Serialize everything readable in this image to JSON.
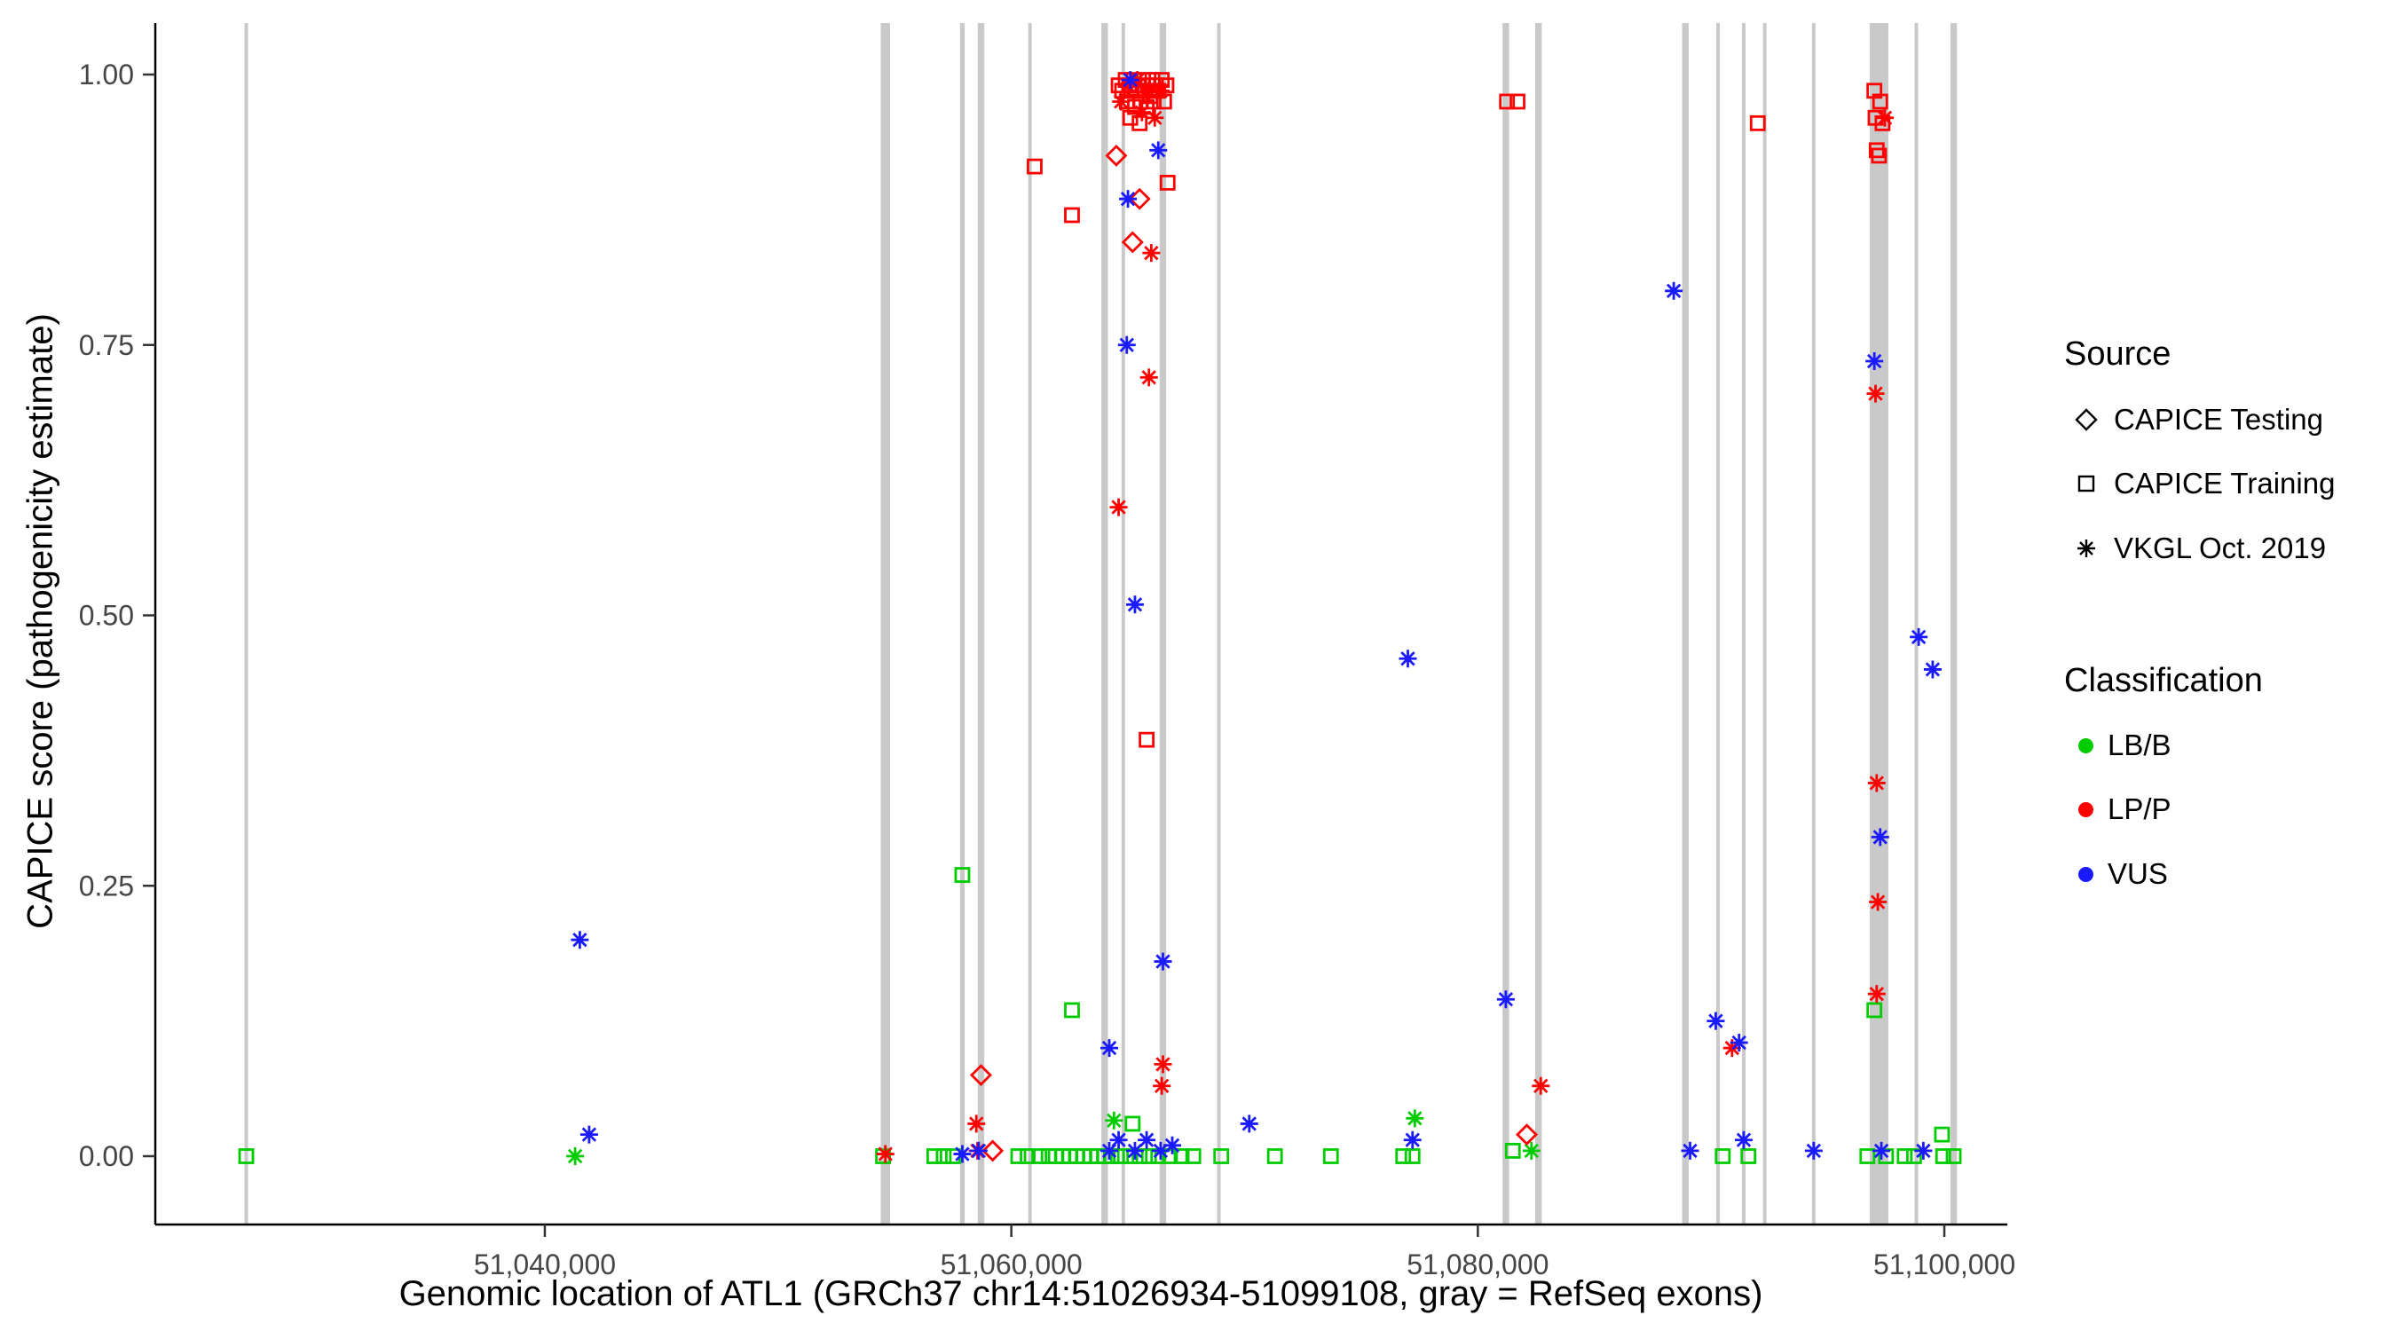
{
  "legend": {
    "source": {
      "title": "Source",
      "items": [
        {
          "symbol": "diamond-icon",
          "label": "CAPICE Testing"
        },
        {
          "symbol": "square-icon",
          "label": "CAPICE Training"
        },
        {
          "symbol": "asterisk-icon",
          "label": "VKGL Oct. 2019"
        }
      ]
    },
    "classification": {
      "title": "Classification",
      "items": [
        {
          "label": "LB/B",
          "color_code": "G"
        },
        {
          "label": "LP/P",
          "color_code": "R"
        },
        {
          "label": "VUS",
          "color_code": "V"
        }
      ]
    }
  },
  "chart_data": {
    "type": "scatter",
    "xlabel": "Genomic location of ATL1 (GRCh37 chr14:51026934-51099108, gray = RefSeq exons)",
    "ylabel": "CAPICE score (pathogenicity estimate)",
    "xlim": [
      51023300,
      51102700
    ],
    "ylim": [
      -0.063,
      1.048
    ],
    "grid": false,
    "legend_position": "right",
    "x_ticks": [
      {
        "value": 51040000,
        "label": "51,040,000"
      },
      {
        "value": 51060000,
        "label": "51,060,000"
      },
      {
        "value": 51080000,
        "label": "51,080,000"
      },
      {
        "value": 51100000,
        "label": "51,100,000"
      }
    ],
    "y_ticks": [
      {
        "value": 0.0,
        "label": "0.00"
      },
      {
        "value": 0.25,
        "label": "0.25"
      },
      {
        "value": 0.5,
        "label": "0.50"
      },
      {
        "value": 0.75,
        "label": "0.75"
      },
      {
        "value": 1.0,
        "label": "1.00"
      }
    ],
    "exon_color": "#C9C9C9",
    "exon_format": [
      "genomic_position_center",
      "width_bp"
    ],
    "exons": [
      [
        51027200,
        150
      ],
      [
        51054600,
        400
      ],
      [
        51057900,
        200
      ],
      [
        51058700,
        280
      ],
      [
        51060800,
        150
      ],
      [
        51064000,
        280
      ],
      [
        51064800,
        150
      ],
      [
        51066500,
        280
      ],
      [
        51068900,
        150
      ],
      [
        51081200,
        280
      ],
      [
        51082600,
        280
      ],
      [
        51088900,
        280
      ],
      [
        51090300,
        150
      ],
      [
        51091400,
        150
      ],
      [
        51092300,
        150
      ],
      [
        51094400,
        150
      ],
      [
        51097200,
        800
      ],
      [
        51098800,
        150
      ],
      [
        51100400,
        280
      ]
    ],
    "source_codes": {
      "D": "CAPICE Testing",
      "S": "CAPICE Training",
      "A": "VKGL Oct. 2019"
    },
    "source_shapes": {
      "D": "open-diamond",
      "S": "open-square",
      "A": "asterisk"
    },
    "class_codes": {
      "G": "LB/B",
      "R": "LP/P",
      "V": "VUS"
    },
    "class_colors": {
      "G": "#00CC00",
      "R": "#FF0000",
      "V": "#1A1AFF"
    },
    "point_format": [
      "genomic_position",
      "capice_score",
      "source_code",
      "class_code"
    ],
    "points": [
      [
        51027200,
        0,
        "S",
        "G"
      ],
      [
        51054500,
        0,
        "S",
        "G"
      ],
      [
        51056700,
        0,
        "S",
        "G"
      ],
      [
        51057100,
        0,
        "S",
        "G"
      ],
      [
        51057500,
        0,
        "S",
        "G"
      ],
      [
        51057900,
        0.26,
        "S",
        "G"
      ],
      [
        51060300,
        0,
        "S",
        "G"
      ],
      [
        51060700,
        0,
        "S",
        "G"
      ],
      [
        51061200,
        0,
        "S",
        "G"
      ],
      [
        51061600,
        0,
        "S",
        "G"
      ],
      [
        51061900,
        0,
        "S",
        "G"
      ],
      [
        51062200,
        0,
        "S",
        "G"
      ],
      [
        51062500,
        0,
        "S",
        "G"
      ],
      [
        51062600,
        0.135,
        "S",
        "G"
      ],
      [
        51062800,
        0,
        "S",
        "G"
      ],
      [
        51063100,
        0,
        "S",
        "G"
      ],
      [
        51063400,
        0,
        "S",
        "G"
      ],
      [
        51063700,
        0,
        "S",
        "G"
      ],
      [
        51064000,
        0,
        "S",
        "G"
      ],
      [
        51064300,
        0,
        "S",
        "G"
      ],
      [
        51064700,
        0,
        "S",
        "G"
      ],
      [
        51065100,
        0,
        "S",
        "G"
      ],
      [
        51065200,
        0.03,
        "S",
        "G"
      ],
      [
        51065500,
        0,
        "S",
        "G"
      ],
      [
        51065900,
        0,
        "S",
        "G"
      ],
      [
        51066300,
        0,
        "S",
        "G"
      ],
      [
        51066800,
        0,
        "S",
        "G"
      ],
      [
        51067300,
        0,
        "S",
        "G"
      ],
      [
        51067800,
        0,
        "S",
        "G"
      ],
      [
        51069000,
        0,
        "S",
        "G"
      ],
      [
        51071300,
        0,
        "S",
        "G"
      ],
      [
        51073700,
        0,
        "S",
        "G"
      ],
      [
        51076800,
        0,
        "S",
        "G"
      ],
      [
        51077200,
        0,
        "S",
        "G"
      ],
      [
        51081500,
        0.005,
        "S",
        "G"
      ],
      [
        51090500,
        0,
        "S",
        "G"
      ],
      [
        51091600,
        0,
        "S",
        "G"
      ],
      [
        51096700,
        0,
        "S",
        "G"
      ],
      [
        51097000,
        0.135,
        "S",
        "G"
      ],
      [
        51097500,
        0,
        "S",
        "G"
      ],
      [
        51098300,
        0,
        "S",
        "G"
      ],
      [
        51098700,
        0,
        "S",
        "G"
      ],
      [
        51099900,
        0.02,
        "S",
        "G"
      ],
      [
        51099950,
        0,
        "S",
        "G"
      ],
      [
        51100400,
        0,
        "S",
        "G"
      ],
      [
        51041300,
        0,
        "A",
        "G"
      ],
      [
        51064400,
        0.033,
        "A",
        "G"
      ],
      [
        51077300,
        0.035,
        "A",
        "G"
      ],
      [
        51082300,
        0.005,
        "A",
        "G"
      ],
      [
        51064600,
        0.99,
        "S",
        "R"
      ],
      [
        51064750,
        0.985,
        "S",
        "R"
      ],
      [
        51064900,
        0.995,
        "S",
        "R"
      ],
      [
        51064950,
        0.975,
        "S",
        "R"
      ],
      [
        51065050,
        0.99,
        "S",
        "R"
      ],
      [
        51065100,
        0.96,
        "S",
        "R"
      ],
      [
        51065150,
        0.985,
        "S",
        "R"
      ],
      [
        51065250,
        0.995,
        "S",
        "R"
      ],
      [
        51065300,
        0.97,
        "S",
        "R"
      ],
      [
        51065350,
        0.985,
        "S",
        "R"
      ],
      [
        51065450,
        0.99,
        "S",
        "R"
      ],
      [
        51065500,
        0.955,
        "S",
        "R"
      ],
      [
        51065550,
        0.975,
        "S",
        "R"
      ],
      [
        51065650,
        0.995,
        "S",
        "R"
      ],
      [
        51065700,
        0.985,
        "S",
        "R"
      ],
      [
        51065800,
        0.97,
        "S",
        "R"
      ],
      [
        51065850,
        0.99,
        "S",
        "R"
      ],
      [
        51065950,
        0.98,
        "S",
        "R"
      ],
      [
        51066050,
        0.995,
        "S",
        "R"
      ],
      [
        51066100,
        0.975,
        "S",
        "R"
      ],
      [
        51066200,
        0.99,
        "S",
        "R"
      ],
      [
        51066300,
        0.985,
        "S",
        "R"
      ],
      [
        51066450,
        0.995,
        "S",
        "R"
      ],
      [
        51066550,
        0.975,
        "S",
        "R"
      ],
      [
        51066650,
        0.99,
        "S",
        "R"
      ],
      [
        51061000,
        0.915,
        "S",
        "R"
      ],
      [
        51062600,
        0.87,
        "S",
        "R"
      ],
      [
        51066700,
        0.9,
        "S",
        "R"
      ],
      [
        51065800,
        0.385,
        "S",
        "R"
      ],
      [
        51081250,
        0.975,
        "S",
        "R"
      ],
      [
        51081700,
        0.975,
        "S",
        "R"
      ],
      [
        51092000,
        0.955,
        "S",
        "R"
      ],
      [
        51097000,
        0.985,
        "S",
        "R"
      ],
      [
        51097250,
        0.975,
        "S",
        "R"
      ],
      [
        51097050,
        0.96,
        "S",
        "R"
      ],
      [
        51097350,
        0.955,
        "S",
        "R"
      ],
      [
        51097100,
        0.93,
        "S",
        "R"
      ],
      [
        51097200,
        0.925,
        "S",
        "R"
      ],
      [
        51064500,
        0.925,
        "D",
        "R"
      ],
      [
        51065500,
        0.885,
        "D",
        "R"
      ],
      [
        51065200,
        0.845,
        "D",
        "R"
      ],
      [
        51058700,
        0.075,
        "D",
        "R"
      ],
      [
        51059200,
        0.005,
        "D",
        "R"
      ],
      [
        51082100,
        0.02,
        "D",
        "R"
      ],
      [
        51064700,
        0.975,
        "A",
        "R"
      ],
      [
        51065000,
        0.99,
        "A",
        "R"
      ],
      [
        51065400,
        0.995,
        "A",
        "R"
      ],
      [
        51065600,
        0.965,
        "A",
        "R"
      ],
      [
        51065900,
        0.985,
        "A",
        "R"
      ],
      [
        51066150,
        0.96,
        "A",
        "R"
      ],
      [
        51066400,
        0.985,
        "A",
        "R"
      ],
      [
        51066000,
        0.835,
        "A",
        "R"
      ],
      [
        51065900,
        0.72,
        "A",
        "R"
      ],
      [
        51064600,
        0.6,
        "A",
        "R"
      ],
      [
        51066500,
        0.085,
        "A",
        "R"
      ],
      [
        51066450,
        0.065,
        "A",
        "R"
      ],
      [
        51058500,
        0.03,
        "A",
        "R"
      ],
      [
        51058550,
        0.005,
        "A",
        "R"
      ],
      [
        51054600,
        0.002,
        "A",
        "R"
      ],
      [
        51082700,
        0.065,
        "A",
        "R"
      ],
      [
        51090900,
        0.1,
        "A",
        "R"
      ],
      [
        51097450,
        0.96,
        "A",
        "R"
      ],
      [
        51097050,
        0.705,
        "A",
        "R"
      ],
      [
        51097100,
        0.345,
        "A",
        "R"
      ],
      [
        51097150,
        0.235,
        "A",
        "R"
      ],
      [
        51097100,
        0.15,
        "A",
        "R"
      ],
      [
        51041500,
        0.2,
        "A",
        "V"
      ],
      [
        51041900,
        0.02,
        "A",
        "V"
      ],
      [
        51057900,
        0.002,
        "A",
        "V"
      ],
      [
        51058600,
        0.005,
        "A",
        "V"
      ],
      [
        51065100,
        0.995,
        "A",
        "V"
      ],
      [
        51066300,
        0.93,
        "A",
        "V"
      ],
      [
        51065000,
        0.885,
        "A",
        "V"
      ],
      [
        51064950,
        0.75,
        "A",
        "V"
      ],
      [
        51065300,
        0.51,
        "A",
        "V"
      ],
      [
        51066500,
        0.18,
        "A",
        "V"
      ],
      [
        51064200,
        0.1,
        "A",
        "V"
      ],
      [
        51064200,
        0.005,
        "A",
        "V"
      ],
      [
        51064600,
        0.015,
        "A",
        "V"
      ],
      [
        51065300,
        0.005,
        "A",
        "V"
      ],
      [
        51065800,
        0.015,
        "A",
        "V"
      ],
      [
        51066400,
        0.005,
        "A",
        "V"
      ],
      [
        51066900,
        0.01,
        "A",
        "V"
      ],
      [
        51070200,
        0.03,
        "A",
        "V"
      ],
      [
        51077000,
        0.46,
        "A",
        "V"
      ],
      [
        51077200,
        0.015,
        "A",
        "V"
      ],
      [
        51081200,
        0.145,
        "A",
        "V"
      ],
      [
        51088400,
        0.8,
        "A",
        "V"
      ],
      [
        51089100,
        0.005,
        "A",
        "V"
      ],
      [
        51090200,
        0.125,
        "A",
        "V"
      ],
      [
        51091200,
        0.105,
        "A",
        "V"
      ],
      [
        51091400,
        0.015,
        "A",
        "V"
      ],
      [
        51094400,
        0.005,
        "A",
        "V"
      ],
      [
        51097000,
        0.735,
        "A",
        "V"
      ],
      [
        51097250,
        0.295,
        "A",
        "V"
      ],
      [
        51097300,
        0.005,
        "A",
        "V"
      ],
      [
        51098900,
        0.48,
        "A",
        "V"
      ],
      [
        51099500,
        0.45,
        "A",
        "V"
      ],
      [
        51099100,
        0.005,
        "A",
        "V"
      ]
    ]
  }
}
